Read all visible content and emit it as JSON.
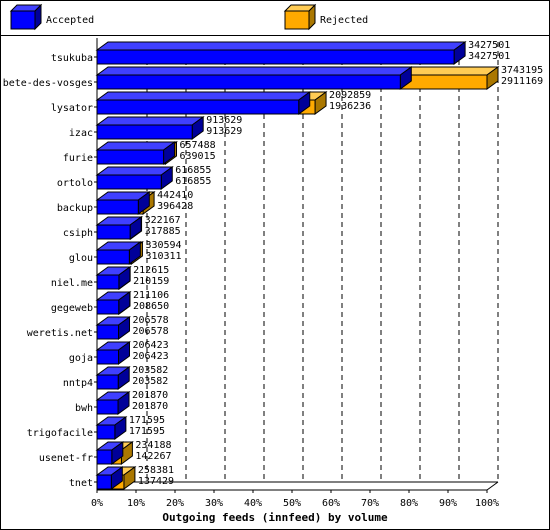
{
  "chart_data": {
    "type": "bar",
    "title": "",
    "xlabel": "Outgoing feeds (innfeed) by volume",
    "ylabel": "",
    "xlim": [
      0,
      100
    ],
    "x_ticks": [
      "0%",
      "10%",
      "20%",
      "30%",
      "40%",
      "50%",
      "60%",
      "70%",
      "80%",
      "90%",
      "100%"
    ],
    "grid": true,
    "legend_position": "top",
    "categories": [
      "tsukuba",
      "bete-des-vosges",
      "lysator",
      "izac",
      "furie",
      "ortolo",
      "backup",
      "csiph",
      "glou",
      "niel.me",
      "gegeweb",
      "weretis.net",
      "goja",
      "nntp4",
      "bwh",
      "trigofacile",
      "usenet-fr",
      "tnet"
    ],
    "series": [
      {
        "name": "Accepted",
        "color": "#0000ff",
        "values": [
          3427501,
          2911169,
          1936236,
          913629,
          639015,
          616855,
          396428,
          317885,
          310311,
          210159,
          208650,
          206578,
          206423,
          203582,
          201870,
          171595,
          142267,
          137429
        ]
      },
      {
        "name": "Rejected",
        "color": "#ffaa00",
        "values": [
          3427501,
          3743195,
          2092859,
          913629,
          657488,
          616855,
          442410,
          322167,
          330594,
          212615,
          211106,
          206578,
          206423,
          203582,
          201870,
          171595,
          234188,
          258381
        ]
      }
    ],
    "value_labels_top": [
      "3427501",
      "3743195",
      "2092859",
      "913629",
      "657488",
      "616855",
      "442410",
      "322167",
      "330594",
      "212615",
      "211106",
      "206578",
      "206423",
      "203582",
      "201870",
      "171595",
      "234188",
      "258381"
    ],
    "value_labels_bottom": [
      "3427501",
      "2911169",
      "1936236",
      "913629",
      "639015",
      "616855",
      "396428",
      "317885",
      "310311",
      "210159",
      "208650",
      "206578",
      "206423",
      "203582",
      "201870",
      "171595",
      "142267",
      "137429"
    ],
    "max_value": 3743195
  }
}
